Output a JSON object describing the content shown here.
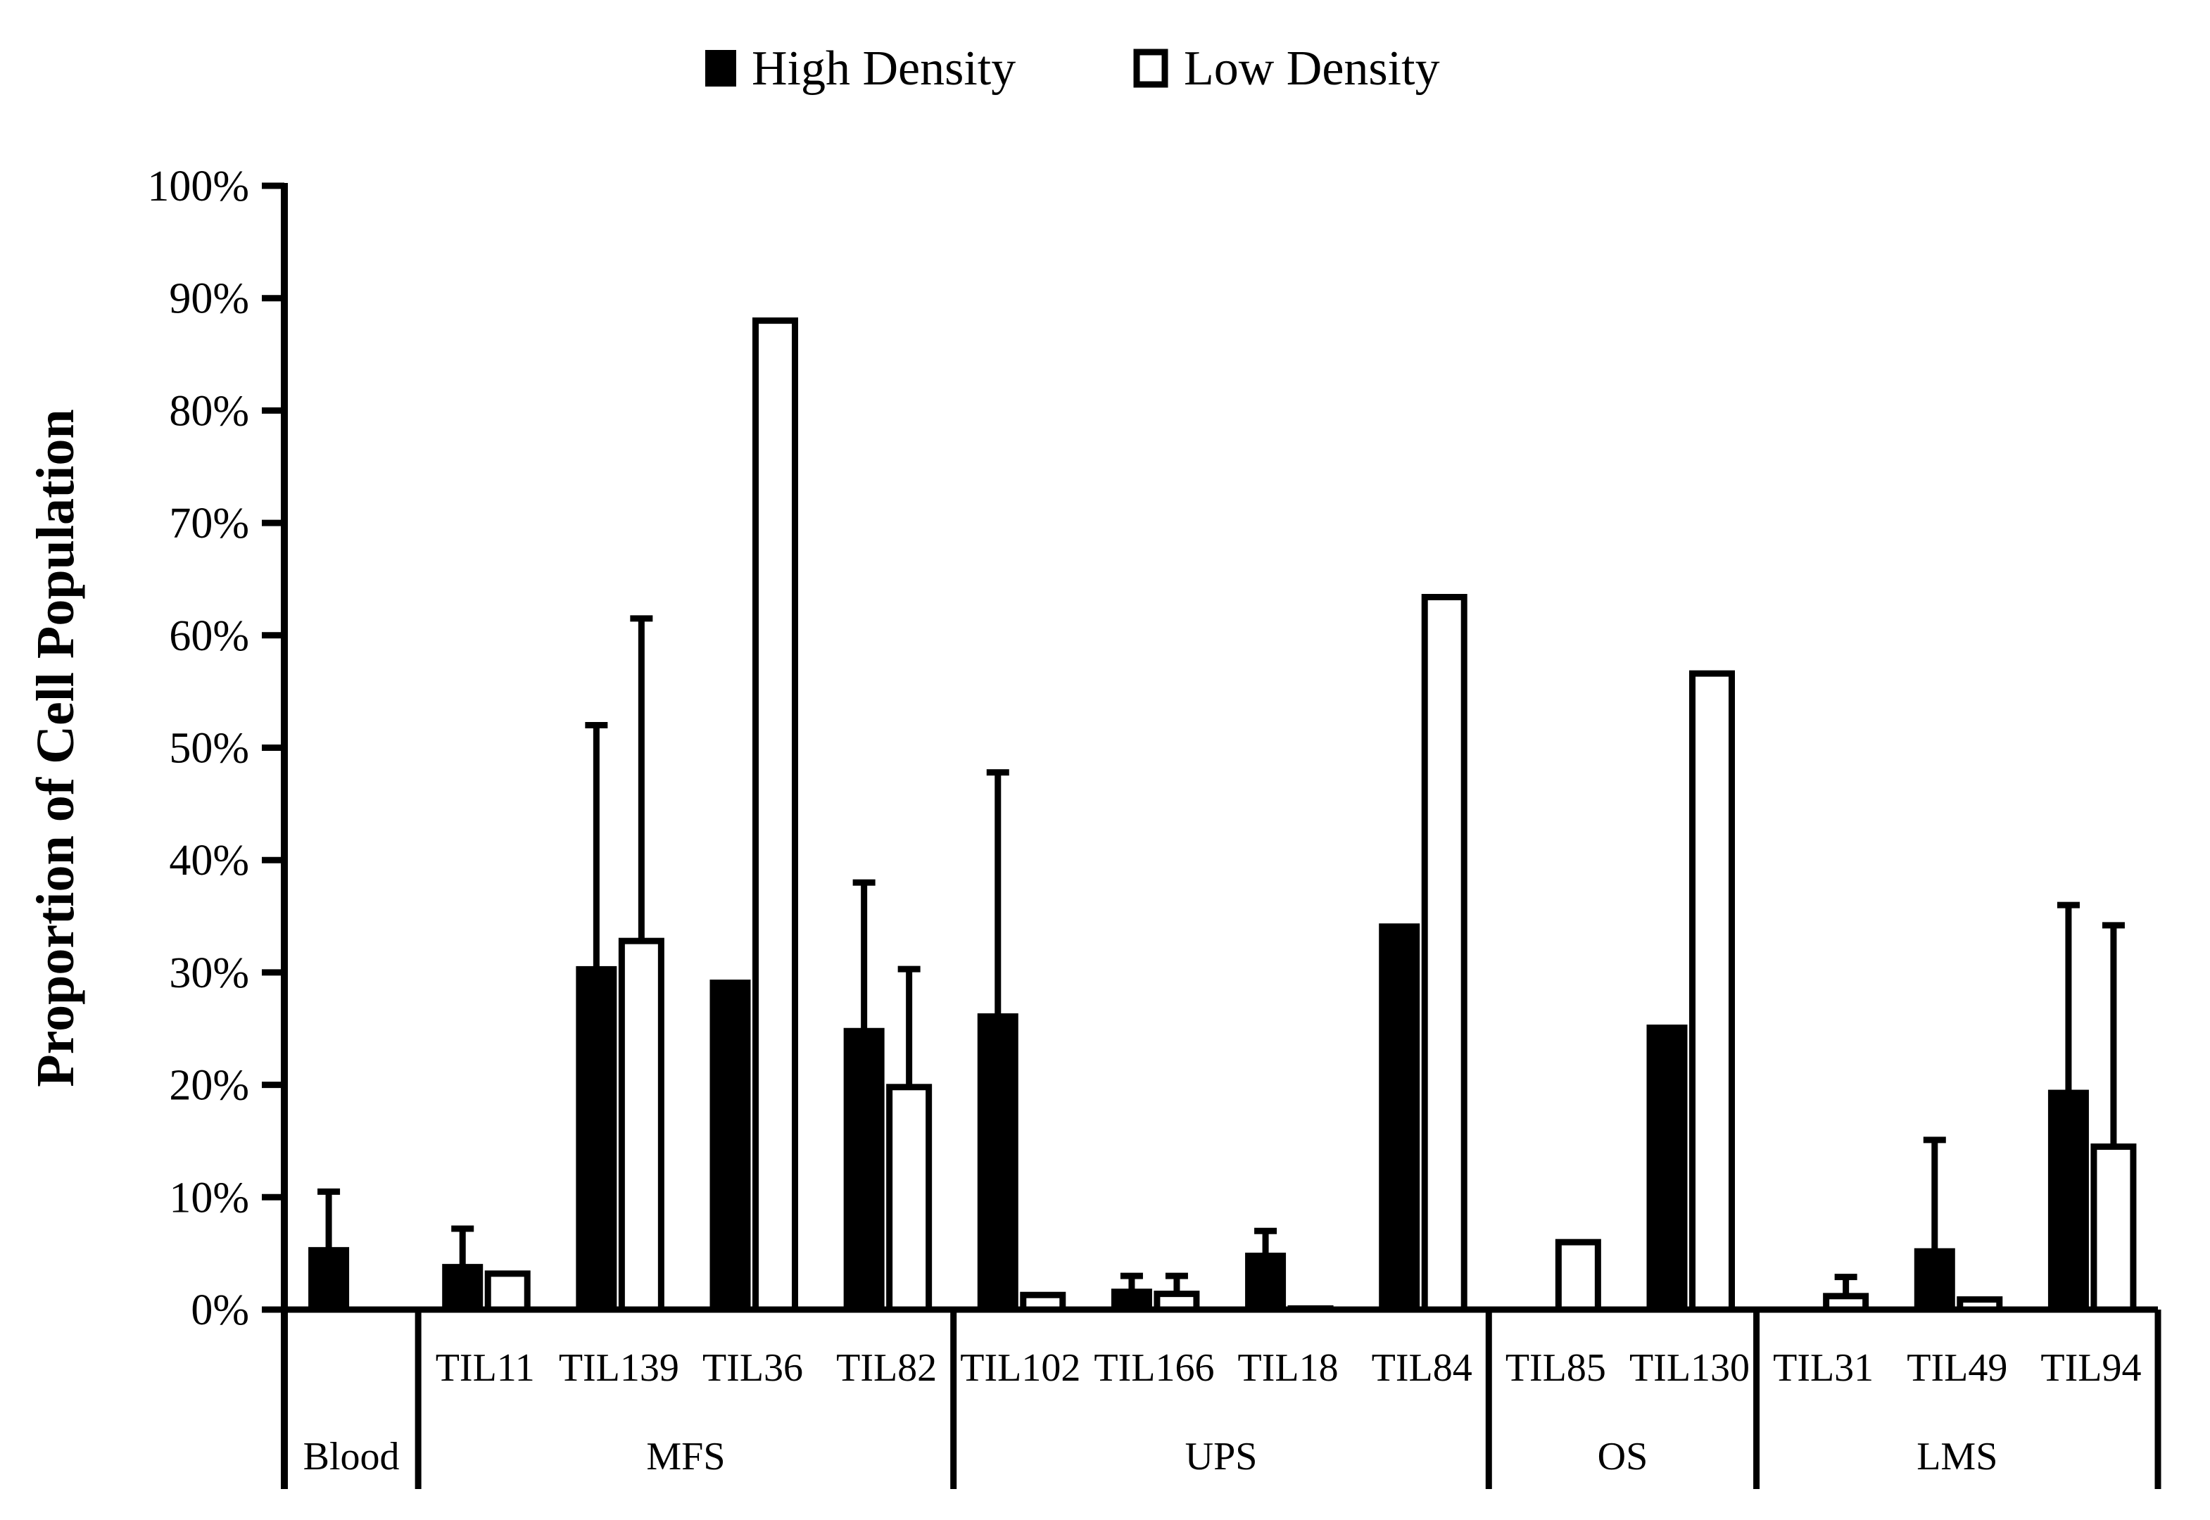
{
  "chart_data": {
    "type": "bar",
    "title": "",
    "ylabel": "Proportion of Cell Population",
    "xlabel": "",
    "ylim": [
      0,
      100
    ],
    "y_ticks": [
      "0%",
      "10%",
      "20%",
      "30%",
      "40%",
      "50%",
      "60%",
      "70%",
      "80%",
      "90%",
      "100%"
    ],
    "legend": {
      "position": "top-center",
      "entries": [
        "High Density",
        "Low Density"
      ]
    },
    "categories": [
      "",
      "TIL11",
      "TIL139",
      "TIL36",
      "TIL82",
      "TIL102",
      "TIL166",
      "TIL18",
      "TIL84",
      "TIL85",
      "TIL130",
      "TIL31",
      "TIL49",
      "TIL94"
    ],
    "groups": [
      {
        "label": "Blood",
        "count": 1
      },
      {
        "label": "MFS",
        "count": 4
      },
      {
        "label": "UPS",
        "count": 4
      },
      {
        "label": "OS",
        "count": 2
      },
      {
        "label": "LMS",
        "count": 3
      }
    ],
    "series": [
      {
        "name": "High Density",
        "fill": "#000000",
        "values": [
          5.5,
          4,
          30.5,
          29.3,
          25,
          26.3,
          1.8,
          5,
          34.3,
          0.2,
          25.3,
          0.2,
          5.4,
          19.5
        ],
        "error": [
          5,
          3.2,
          21.5,
          null,
          13,
          21.5,
          1.2,
          2,
          null,
          null,
          null,
          null,
          9.7,
          16.5
        ]
      },
      {
        "name": "Low Density",
        "fill": "#ffffff",
        "values": [
          null,
          3.2,
          32.8,
          88,
          19.8,
          1.3,
          1.4,
          0.1,
          63.4,
          6,
          56.6,
          1.2,
          0.9,
          14.5
        ],
        "error": [
          null,
          null,
          28.7,
          null,
          10.5,
          null,
          1.6,
          null,
          null,
          null,
          null,
          1.7,
          null,
          19.7
        ]
      }
    ]
  }
}
